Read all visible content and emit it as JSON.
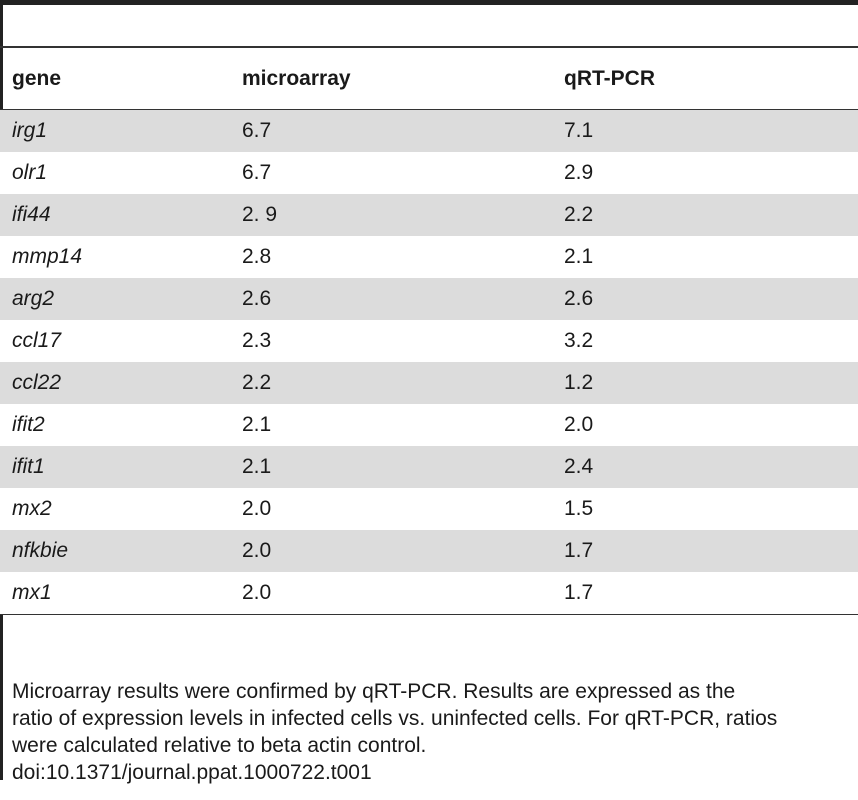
{
  "table": {
    "headers": [
      "gene",
      "microarray",
      "qRT-PCR"
    ],
    "rows": [
      {
        "gene": "irg1",
        "microarray": "6.7",
        "qrtpcr": "7.1"
      },
      {
        "gene": "olr1",
        "microarray": "6.7",
        "qrtpcr": "2.9"
      },
      {
        "gene": "ifi44",
        "microarray": "2. 9",
        "qrtpcr": "2.2"
      },
      {
        "gene": "mmp14",
        "microarray": "2.8",
        "qrtpcr": "2.1"
      },
      {
        "gene": "arg2",
        "microarray": "2.6",
        "qrtpcr": "2.6"
      },
      {
        "gene": "ccl17",
        "microarray": "2.3",
        "qrtpcr": "3.2"
      },
      {
        "gene": "ccl22",
        "microarray": "2.2",
        "qrtpcr": "1.2"
      },
      {
        "gene": "ifit2",
        "microarray": "2.1",
        "qrtpcr": "2.0"
      },
      {
        "gene": "ifit1",
        "microarray": "2.1",
        "qrtpcr": "2.4"
      },
      {
        "gene": "mx2",
        "microarray": "2.0",
        "qrtpcr": "1.5"
      },
      {
        "gene": "nfkbie",
        "microarray": "2.0",
        "qrtpcr": "1.7"
      },
      {
        "gene": "mx1",
        "microarray": "2.0",
        "qrtpcr": "1.7"
      }
    ]
  },
  "footnote": {
    "lines": [
      "Microarray results were confirmed by qRT-PCR. Results are expressed as the",
      "ratio of expression levels in infected cells vs. uninfected cells. For qRT-PCR, ratios",
      "were calculated relative to beta actin control."
    ],
    "doi": "doi:10.1371/journal.ppat.1000722.t001"
  }
}
